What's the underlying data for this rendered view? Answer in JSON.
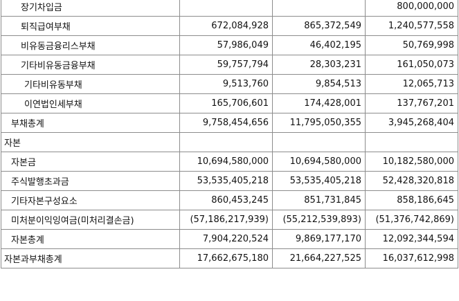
{
  "rows": [
    {
      "label": "장기차입금",
      "indent": 2,
      "v": [
        "",
        "",
        "800,000,000"
      ]
    },
    {
      "label": "퇴직급여부채",
      "indent": 2,
      "v": [
        "672,084,928",
        "865,372,549",
        "1,240,577,558"
      ]
    },
    {
      "label": "비유동금융리스부채",
      "indent": 2,
      "v": [
        "57,986,049",
        "46,402,195",
        "50,769,998"
      ]
    },
    {
      "label": "기타비유동금융부채",
      "indent": 2,
      "v": [
        "59,757,794",
        "28,303,231",
        "161,050,073"
      ]
    },
    {
      "label": "기타비유동부채",
      "indent": 3,
      "v": [
        "9,513,760",
        "9,854,513",
        "12,065,713"
      ]
    },
    {
      "label": "이연법인세부채",
      "indent": 3,
      "v": [
        "165,706,601",
        "174,428,001",
        "137,767,201"
      ]
    },
    {
      "label": "부채총계",
      "indent": 1,
      "v": [
        "9,758,454,656",
        "11,795,050,355",
        "3,945,268,404"
      ]
    },
    {
      "label": "자본",
      "indent": 0,
      "v": [
        "",
        "",
        ""
      ]
    },
    {
      "label": "자본금",
      "indent": 1,
      "v": [
        "10,694,580,000",
        "10,694,580,000",
        "10,182,580,000"
      ]
    },
    {
      "label": "주식발행초과금",
      "indent": 1,
      "v": [
        "53,535,405,218",
        "53,535,405,218",
        "52,428,320,818"
      ]
    },
    {
      "label": "기타자본구성요소",
      "indent": 1,
      "v": [
        "860,453,245",
        "851,731,845",
        "858,186,645"
      ]
    },
    {
      "label": "미처분이익잉여금(미처리결손금)",
      "indent": 1,
      "v": [
        "(57,186,217,939)",
        "(55,212,539,893)",
        "(51,376,742,869)"
      ]
    },
    {
      "label": "자본총계",
      "indent": 1,
      "v": [
        "7,904,220,524",
        "9,869,177,170",
        "12,092,344,594"
      ]
    },
    {
      "label": "자본과부채총계",
      "indent": 0,
      "v": [
        "17,662,675,180",
        "21,664,227,525",
        "16,037,612,998"
      ]
    }
  ]
}
